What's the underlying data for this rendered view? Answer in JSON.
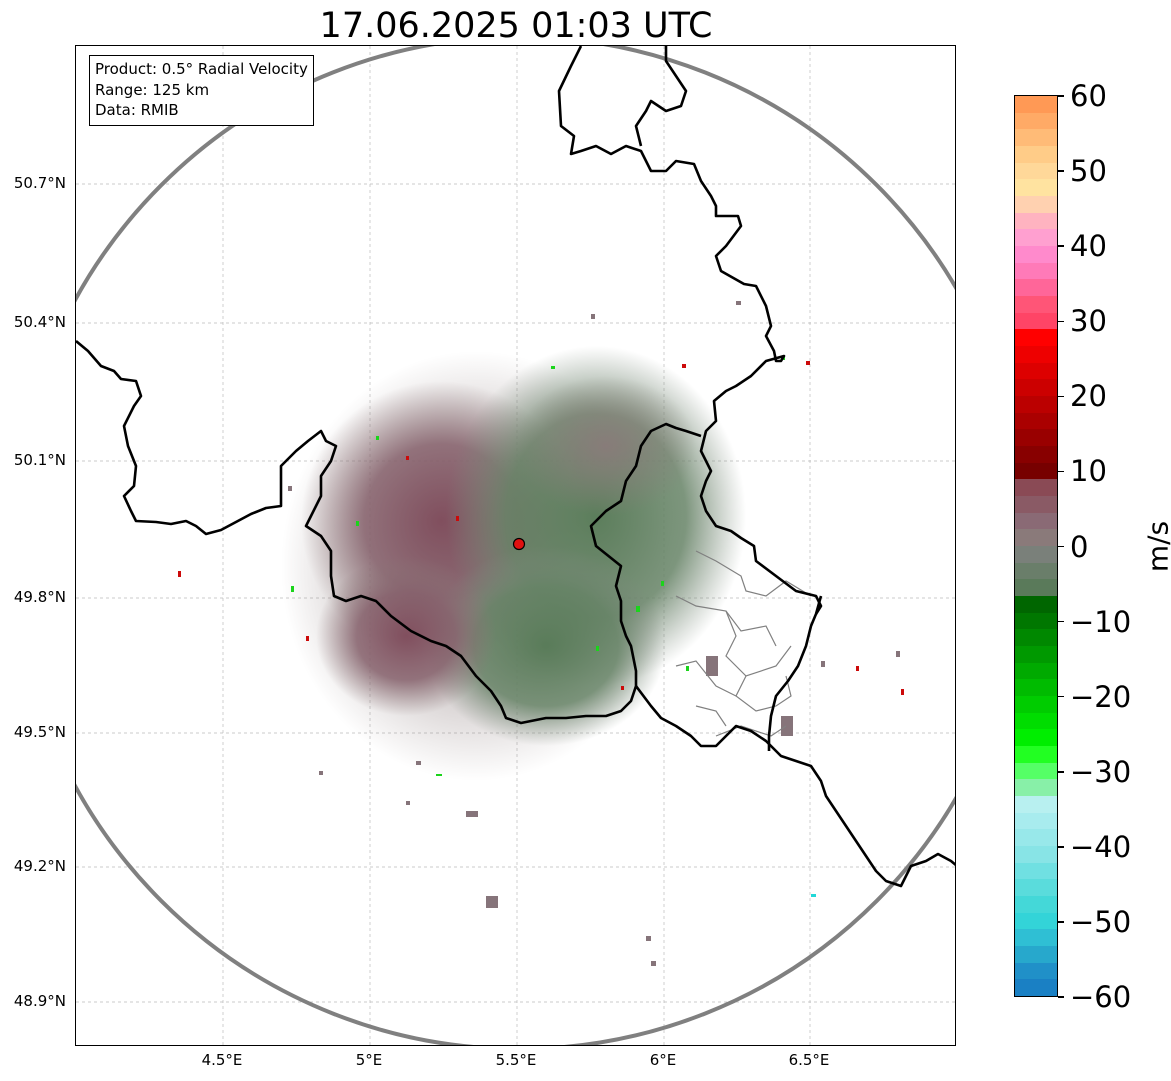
{
  "title": "17.06.2025 01:03 UTC",
  "info_box": {
    "product": "Product: 0.5° Radial Velocity",
    "range": "Range: 125 km",
    "data": "Data: RMIB"
  },
  "lat_labels": [
    "50.7°N",
    "50.4°N",
    "50.1°N",
    "49.8°N",
    "49.5°N",
    "49.2°N",
    "48.9°N"
  ],
  "lon_labels": [
    "4.5°E",
    "5°E",
    "5.5°E",
    "6°E",
    "6.5°E"
  ],
  "colorbar": {
    "unit": "m/s",
    "range": [
      -60,
      60
    ],
    "ticks": [
      "60",
      "50",
      "40",
      "30",
      "20",
      "10",
      "0",
      "−10",
      "−20",
      "−30",
      "−40",
      "−50",
      "−60"
    ]
  },
  "colors": {
    "radar_range_ring": "#808080",
    "border": "#000000",
    "radar_site": "#e01010",
    "outbound": "#7a5a62",
    "inbound": "#5c7a5c"
  }
}
